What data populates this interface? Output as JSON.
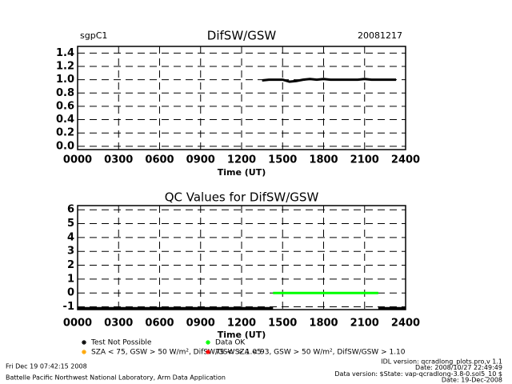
{
  "chart_data": [
    {
      "type": "line",
      "title": "DifSW/GSW",
      "left_label": "sgpC1",
      "right_label": "20081217",
      "x_label": "Time (UT)",
      "xlim": [
        0,
        24
      ],
      "xticks": [
        {
          "value": 0,
          "label": "0000"
        },
        {
          "value": 3,
          "label": "0300"
        },
        {
          "value": 6,
          "label": "0600"
        },
        {
          "value": 9,
          "label": "0900"
        },
        {
          "value": 12,
          "label": "1200"
        },
        {
          "value": 15,
          "label": "1500"
        },
        {
          "value": 18,
          "label": "1800"
        },
        {
          "value": 21,
          "label": "2100"
        },
        {
          "value": 24,
          "label": "2400"
        }
      ],
      "ylim": [
        -0.05,
        1.5
      ],
      "yticks": [
        {
          "value": 0,
          "label": "0.0"
        },
        {
          "value": 0.2,
          "label": "0.2"
        },
        {
          "value": 0.4,
          "label": "0.4"
        },
        {
          "value": 0.6,
          "label": "0.6"
        },
        {
          "value": 0.8,
          "label": "0.8"
        },
        {
          "value": 1,
          "label": "1.0"
        },
        {
          "value": 1.2,
          "label": "1.2"
        },
        {
          "value": 1.4,
          "label": "1.4"
        }
      ],
      "grid": true,
      "series": [
        {
          "color": "#000000",
          "x": [
            13.5,
            14,
            14.5,
            15,
            15.5,
            16,
            16.5,
            17,
            17.5,
            18,
            18.5,
            19,
            19.5,
            20,
            20.5,
            21,
            21.5,
            22,
            22.5,
            23,
            23.3
          ],
          "values": [
            0.99,
            1.0,
            1.0,
            1.0,
            0.97,
            0.98,
            1.0,
            1.01,
            1.0,
            1.01,
            1.0,
            1.0,
            1.0,
            1.0,
            1.0,
            1.01,
            1.0,
            1.0,
            1.0,
            1.0,
            1.0
          ]
        }
      ]
    },
    {
      "type": "line",
      "title": "QC Values for DifSW/GSW",
      "x_label": "Time (UT)",
      "xlim": [
        0,
        24
      ],
      "xticks": [
        {
          "value": 0,
          "label": "0000"
        },
        {
          "value": 3,
          "label": "0300"
        },
        {
          "value": 6,
          "label": "0600"
        },
        {
          "value": 9,
          "label": "0900"
        },
        {
          "value": 12,
          "label": "1200"
        },
        {
          "value": 15,
          "label": "1500"
        },
        {
          "value": 18,
          "label": "1800"
        },
        {
          "value": 21,
          "label": "2100"
        },
        {
          "value": 24,
          "label": "2400"
        }
      ],
      "ylim": [
        -1.2,
        6.3
      ],
      "yticks": [
        -1,
        0,
        1,
        2,
        3,
        4,
        5,
        6
      ],
      "grid": true,
      "series": [
        {
          "name": "Test Not Possible",
          "color": "#000000",
          "x": [
            0,
            14.3,
            18,
            22,
            24
          ],
          "values": [
            -1.1,
            -1.1,
            null,
            -1.1,
            -1.1
          ]
        },
        {
          "name": "Data OK",
          "color": "#00ff00",
          "x": [
            14.3,
            22
          ],
          "values": [
            0,
            0
          ]
        },
        {
          "name": "SZA < 75, GSW > 50 W/m², DifSW/GSW > 1.05",
          "color": "#ffa500",
          "x": [],
          "values": []
        },
        {
          "name": "75 < SZA < 93, GSW > 50 W/m², DifSW/GSW > 1.10",
          "color": "#ff0000",
          "x": [],
          "values": []
        }
      ]
    }
  ],
  "footer": {
    "left": [
      "Fri Dec 19 07:42:15 2008",
      "Battelle Pacific Northwest National Laboratory, Arm Data Application"
    ],
    "right": [
      "IDL version: qcradlong_plots.pro,v 1.1",
      "Date: 2008/10/27 22:49:49",
      "Data version: $State: vap-qcradlong-3.8-0.sol5_10 $",
      "Date: 19-Dec-2008"
    ]
  }
}
